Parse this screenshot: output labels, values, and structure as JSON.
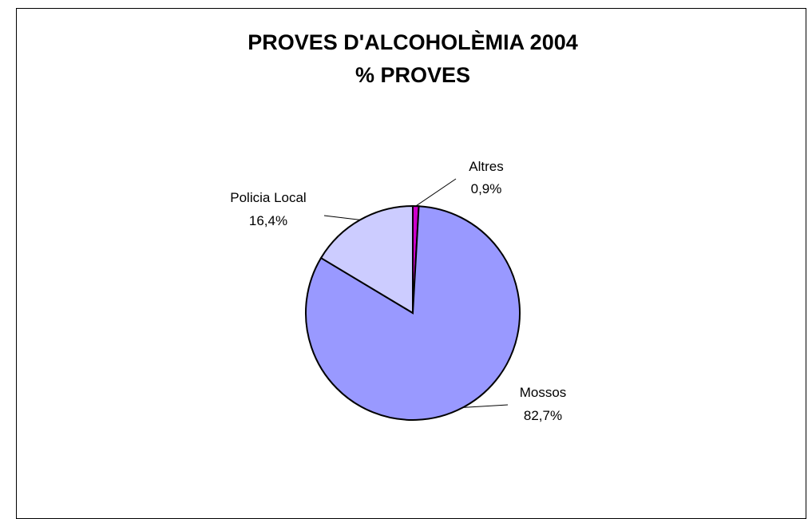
{
  "chart_data": {
    "type": "pie",
    "title": "PROVES D'ALCOHOLÈMIA 2004",
    "subtitle": "% PROVES",
    "slices": [
      {
        "label": "Altres",
        "value": 0.9,
        "value_text": "0,9%",
        "color": "#cc00cc"
      },
      {
        "label": "Mossos",
        "value": 82.7,
        "value_text": "82,7%",
        "color": "#9999ff"
      },
      {
        "label": "Policia Local",
        "value": 16.4,
        "value_text": "16,4%",
        "color": "#ccccff"
      }
    ]
  }
}
